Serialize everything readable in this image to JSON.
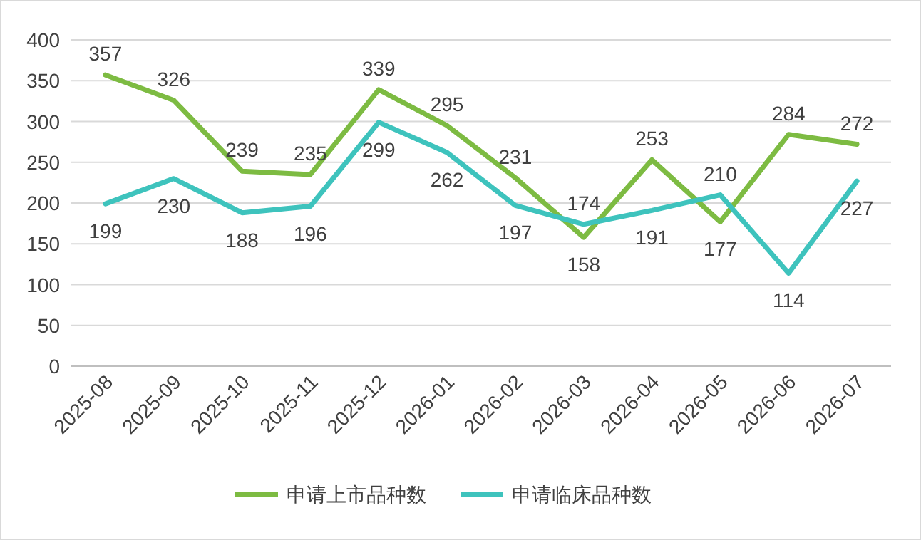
{
  "chart_data": {
    "type": "line",
    "categories": [
      "2025-08",
      "2025-09",
      "2025-10",
      "2025-11",
      "2025-12",
      "2026-01",
      "2026-02",
      "2026-03",
      "2026-04",
      "2026-05",
      "2026-06",
      "2026-07"
    ],
    "series": [
      {
        "name": "申请上市品种数",
        "color": "#7dbb42",
        "values": [
          357,
          326,
          239,
          235,
          339,
          295,
          231,
          158,
          253,
          177,
          284,
          272
        ]
      },
      {
        "name": "申请临床品种数",
        "color": "#3ec3bd",
        "values": [
          199,
          230,
          188,
          196,
          299,
          262,
          197,
          174,
          191,
          210,
          114,
          227
        ]
      }
    ],
    "ylim": [
      0,
      400
    ],
    "yticks": [
      0,
      50,
      100,
      150,
      200,
      250,
      300,
      350,
      400
    ],
    "grid": "y",
    "legend": "bottom",
    "data_labels": true
  }
}
